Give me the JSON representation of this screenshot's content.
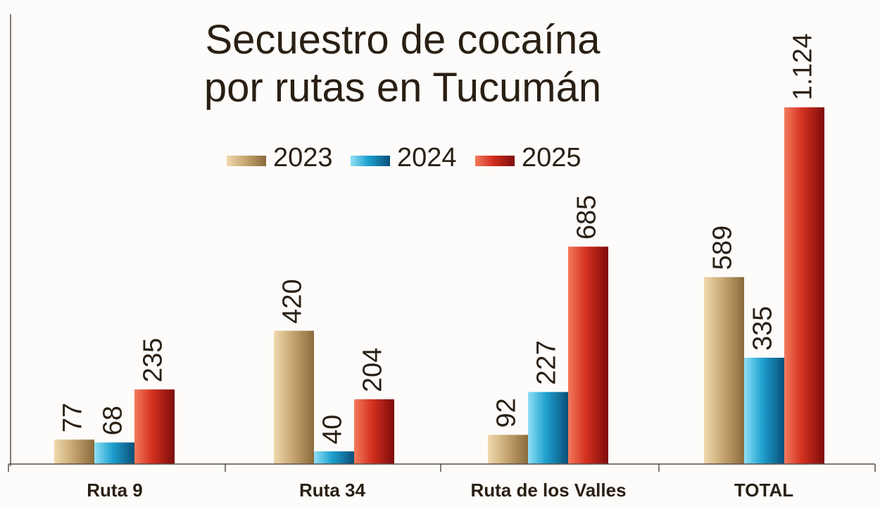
{
  "chart_data": {
    "type": "bar",
    "title_lines": [
      "Secuestro de cocaína",
      "por rutas en Tucumán"
    ],
    "categories": [
      "Ruta 9",
      "Ruta 34",
      "Ruta de los Valles",
      "TOTAL"
    ],
    "series": [
      {
        "name": "2023",
        "values": [
          77,
          420,
          92,
          589
        ],
        "labels": [
          "77",
          "420",
          "92",
          "589"
        ]
      },
      {
        "name": "2024",
        "values": [
          68,
          40,
          227,
          335
        ],
        "labels": [
          "68",
          "40",
          "227",
          "335"
        ]
      },
      {
        "name": "2025",
        "values": [
          235,
          204,
          685,
          1124
        ],
        "labels": [
          "235",
          "204",
          "685",
          "1.124"
        ]
      }
    ],
    "legend_position": "top-center",
    "ylim": [
      0,
      1400
    ],
    "grid": false,
    "colors": {
      "2023": {
        "light": "#efd9ae",
        "mid": "#c9a873",
        "dark": "#8a6a3c"
      },
      "2024": {
        "light": "#8fe0f5",
        "mid": "#1ea0cf",
        "dark": "#0a4f78"
      },
      "2025": {
        "light": "#f47a5c",
        "mid": "#d2301f",
        "dark": "#7e0c0c"
      },
      "text": "#2a1f14",
      "axis": "#5a5048"
    }
  }
}
